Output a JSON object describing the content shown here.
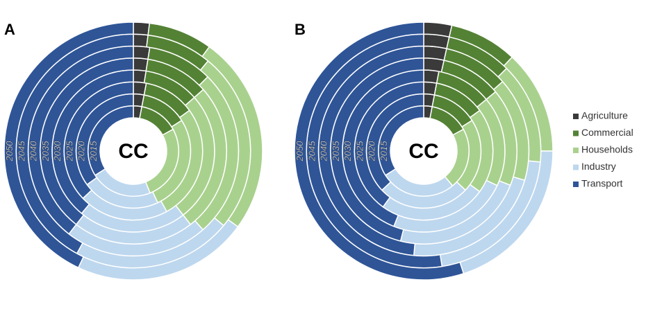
{
  "chart_data": [
    {
      "type": "multi-donut",
      "title": "A",
      "center_label": "CC",
      "categories": [
        "2015",
        "2020",
        "2025",
        "2030",
        "2035",
        "2040",
        "2045",
        "2050"
      ],
      "series": [
        {
          "values": [
            3,
            3,
            3,
            2.5,
            2.5,
            2.5,
            2,
            2
          ]
        },
        {
          "values": [
            14,
            13,
            12,
            11,
            11,
            10,
            9,
            8
          ]
        },
        {
          "values": [
            27,
            27,
            27,
            26,
            26,
            26,
            25,
            25
          ]
        },
        {
          "values": [
            22,
            22,
            21,
            21.5,
            21,
            22,
            22,
            22
          ]
        },
        {
          "values": [
            34,
            35,
            37,
            39,
            39.5,
            39.5,
            42,
            43
          ]
        }
      ]
    },
    {
      "type": "multi-donut",
      "title": "B",
      "center_label": "CC",
      "categories": [
        "2015",
        "2020",
        "2025",
        "2030",
        "2035",
        "2040",
        "2045",
        "2050"
      ],
      "series": [
        {
          "values": [
            3,
            3,
            3,
            3,
            3.5,
            3.5,
            3.5,
            3.5
          ]
        },
        {
          "values": [
            14,
            13,
            12,
            11,
            10.5,
            10,
            9,
            8.5
          ]
        },
        {
          "values": [
            22,
            21,
            20,
            18,
            17,
            16,
            14,
            13
          ]
        },
        {
          "values": [
            27,
            26,
            25,
            24,
            23,
            22,
            21,
            20
          ]
        },
        {
          "values": [
            34,
            37,
            40,
            44,
            46,
            48.5,
            52.5,
            55
          ]
        }
      ]
    }
  ],
  "legend": {
    "items": [
      {
        "name": "Agriculture",
        "color": "#3a3a3a"
      },
      {
        "name": "Commercial",
        "color": "#548235"
      },
      {
        "name": "Households",
        "color": "#a9d18e"
      },
      {
        "name": "Industry",
        "color": "#bdd7ee"
      },
      {
        "name": "Transport",
        "color": "#2f5597"
      }
    ]
  }
}
